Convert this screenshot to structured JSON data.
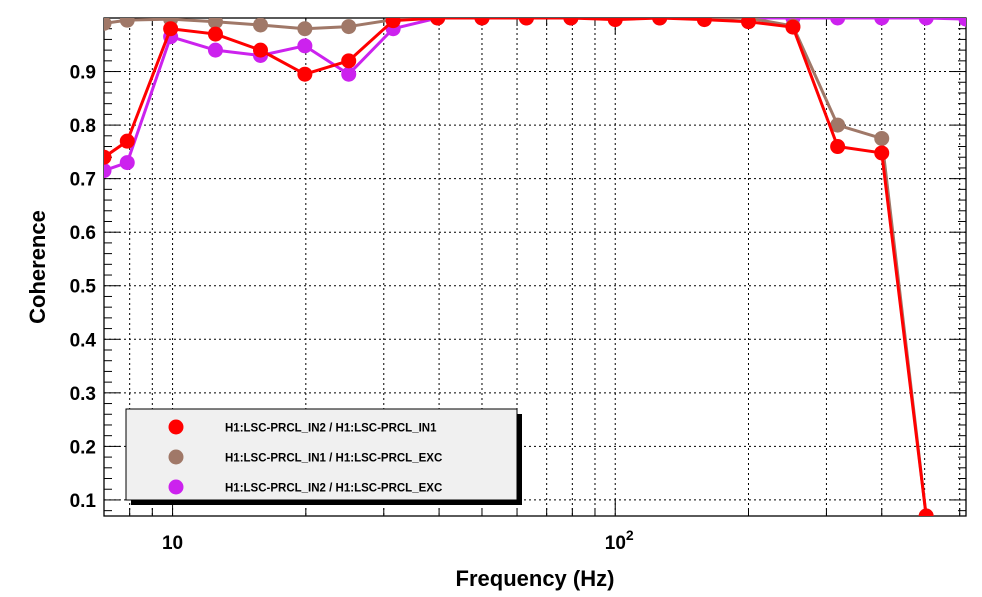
{
  "chart_data": {
    "type": "line",
    "title": "",
    "xlabel": "Frequency (Hz)",
    "ylabel": "Coherence",
    "xscale": "log",
    "xlim": [
      7.0,
      620
    ],
    "ylim": [
      0.07,
      1.0
    ],
    "grid": true,
    "x_tick_labels": [
      {
        "value": 10,
        "base": "10",
        "exp": ""
      },
      {
        "value": 100,
        "base": "10",
        "exp": "2"
      }
    ],
    "y_tick_labels": [
      "0.1",
      "0.2",
      "0.3",
      "0.4",
      "0.5",
      "0.6",
      "0.7",
      "0.8",
      "0.9"
    ],
    "y_tick_values": [
      0.1,
      0.2,
      0.3,
      0.4,
      0.5,
      0.6,
      0.7,
      0.8,
      0.9
    ],
    "legend_position": "bottom-left",
    "x": [
      7.0,
      7.9,
      9.9,
      12.5,
      15.8,
      19.9,
      25.0,
      31.5,
      39.7,
      50.0,
      63.0,
      79.4,
      100,
      126,
      159,
      200,
      252,
      318,
      400,
      504,
      620
    ],
    "series": [
      {
        "name": "H1:LSC-PRCL_IN2 / H1:LSC-PRCL_IN1",
        "color": "#ff0000",
        "values": [
          0.74,
          0.77,
          0.98,
          0.97,
          0.94,
          0.895,
          0.92,
          0.995,
          1.0,
          1.0,
          1.0,
          1.0,
          0.997,
          1.0,
          0.997,
          0.993,
          0.983,
          0.76,
          0.748,
          0.07,
          null
        ]
      },
      {
        "name": "H1:LSC-PRCL_IN1 / H1:LSC-PRCL_EXC",
        "color": "#a07868",
        "values": [
          0.99,
          0.996,
          0.998,
          0.993,
          0.987,
          0.98,
          0.984,
          0.997,
          1.0,
          1.0,
          1.0,
          1.0,
          1.0,
          1.0,
          1.0,
          1.0,
          0.985,
          0.8,
          0.775,
          0.07,
          null
        ]
      },
      {
        "name": "H1:LSC-PRCL_IN2 / H1:LSC-PRCL_EXC",
        "color": "#cc22ee",
        "values": [
          0.715,
          0.73,
          0.965,
          0.94,
          0.93,
          0.948,
          0.895,
          0.98,
          1.0,
          1.0,
          1.0,
          1.0,
          1.0,
          1.0,
          1.0,
          1.0,
          1.0,
          1.0,
          1.0,
          1.0,
          0.998
        ]
      }
    ]
  }
}
